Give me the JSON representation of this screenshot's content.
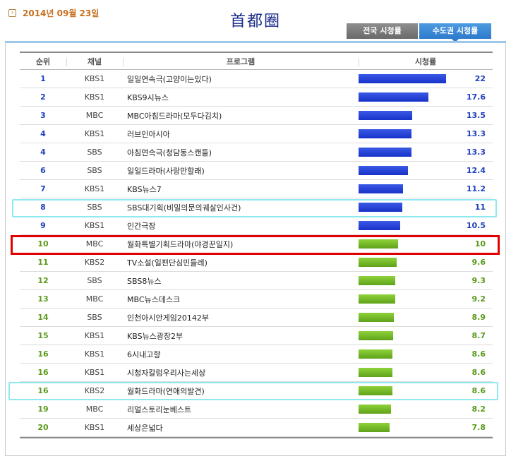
{
  "date": "2014년 09월 23일",
  "title": "首都圈",
  "tabs": {
    "national": "전국 시청률",
    "capital": "수도권 시청률"
  },
  "headers": {
    "rank": "순위",
    "channel": "채널",
    "program": "프로그램",
    "rating": "시청률"
  },
  "max_rating": 22,
  "rows": [
    {
      "rank": "1",
      "channel": "KBS1",
      "program": "일일연속극(고양이는있다)",
      "rating": "22",
      "value": 22,
      "color": "blue"
    },
    {
      "rank": "2",
      "channel": "KBS1",
      "program": "KBS9시뉴스",
      "rating": "17.6",
      "value": 17.6,
      "color": "blue"
    },
    {
      "rank": "3",
      "channel": "MBC",
      "program": "MBC아침드라마(모두다김치)",
      "rating": "13.5",
      "value": 13.5,
      "color": "blue"
    },
    {
      "rank": "4",
      "channel": "KBS1",
      "program": "러브인아시아",
      "rating": "13.3",
      "value": 13.3,
      "color": "blue"
    },
    {
      "rank": "4",
      "channel": "SBS",
      "program": "아침연속극(청담동스캔들)",
      "rating": "13.3",
      "value": 13.3,
      "color": "blue"
    },
    {
      "rank": "6",
      "channel": "SBS",
      "program": "일일드라마(사랑만할래)",
      "rating": "12.4",
      "value": 12.4,
      "color": "blue"
    },
    {
      "rank": "7",
      "channel": "KBS1",
      "program": "KBS뉴스7",
      "rating": "11.2",
      "value": 11.2,
      "color": "blue"
    },
    {
      "rank": "8",
      "channel": "SBS",
      "program": "SBS대기획(비밀의문의궤살인사건)",
      "rating": "11",
      "value": 11,
      "color": "blue"
    },
    {
      "rank": "9",
      "channel": "KBS1",
      "program": "인간극장",
      "rating": "10.5",
      "value": 10.5,
      "color": "blue"
    },
    {
      "rank": "10",
      "channel": "MBC",
      "program": "월화특별기획드라마(야경꾼일지)",
      "rating": "10",
      "value": 10,
      "color": "green"
    },
    {
      "rank": "11",
      "channel": "KBS2",
      "program": "TV소설(일편단심민들레)",
      "rating": "9.6",
      "value": 9.6,
      "color": "green"
    },
    {
      "rank": "12",
      "channel": "SBS",
      "program": "SBS8뉴스",
      "rating": "9.3",
      "value": 9.3,
      "color": "green"
    },
    {
      "rank": "13",
      "channel": "MBC",
      "program": "MBC뉴스데스크",
      "rating": "9.2",
      "value": 9.2,
      "color": "green"
    },
    {
      "rank": "14",
      "channel": "SBS",
      "program": "인천아시안게임20142부",
      "rating": "8.9",
      "value": 8.9,
      "color": "green"
    },
    {
      "rank": "15",
      "channel": "KBS1",
      "program": "KBS뉴스광장2부",
      "rating": "8.7",
      "value": 8.7,
      "color": "green"
    },
    {
      "rank": "16",
      "channel": "KBS1",
      "program": "6시내고향",
      "rating": "8.6",
      "value": 8.6,
      "color": "green"
    },
    {
      "rank": "16",
      "channel": "KBS1",
      "program": "시청자칼럼우리사는세상",
      "rating": "8.6",
      "value": 8.6,
      "color": "green"
    },
    {
      "rank": "16",
      "channel": "KBS2",
      "program": "월화드라마(연애의발견)",
      "rating": "8.6",
      "value": 8.6,
      "color": "green"
    },
    {
      "rank": "19",
      "channel": "MBC",
      "program": "리얼스토리눈베스트",
      "rating": "8.2",
      "value": 8.2,
      "color": "green"
    },
    {
      "rank": "20",
      "channel": "KBS1",
      "program": "세상은넓다",
      "rating": "7.8",
      "value": 7.8,
      "color": "green"
    }
  ]
}
